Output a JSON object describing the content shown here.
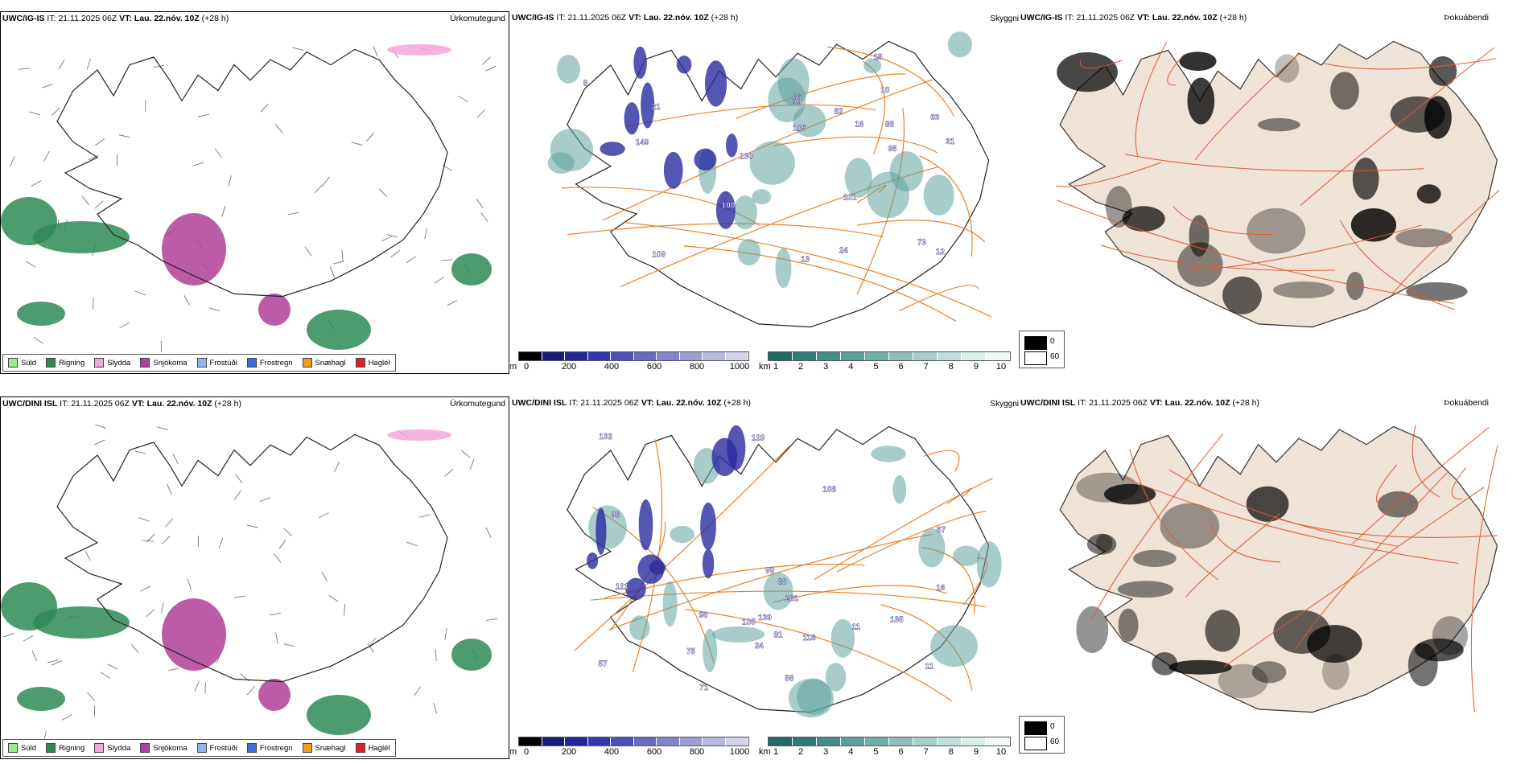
{
  "rows": [
    {
      "model": "UWC/IG-IS",
      "it_label": "IT:",
      "it_value": "21.11.2025 06Z",
      "vt_label": "VT:",
      "vt_value": "Lau. 22.nóv. 10Z",
      "lead": "(+28 h)",
      "precip_title": "Úrkomutegund",
      "cloud_title": "Skyggni",
      "fog_title": "Þokuábendi",
      "cloud_labels": [
        "95",
        "109",
        "12",
        "88",
        "82",
        "63",
        "86",
        "8",
        "105",
        "130",
        "13",
        "21",
        "16",
        "101",
        "149",
        "10",
        "24",
        "15",
        "31",
        "73",
        "100",
        "39"
      ]
    },
    {
      "model": "UWC/DINI ISL",
      "it_label": "IT:",
      "it_value": "21.11.2025 06Z",
      "vt_label": "VT:",
      "vt_value": "Lau. 22.nóv. 10Z",
      "lead": "(+28 h)",
      "precip_title": "Úrkomutegund",
      "cloud_title": "Skyggni",
      "fog_title": "Þokuábendi",
      "cloud_labels": [
        "88",
        "96",
        "75",
        "81",
        "57",
        "129",
        "11",
        "56",
        "57",
        "24",
        "139",
        "105",
        "98",
        "132",
        "11",
        "16",
        "108",
        "135",
        "71",
        "281",
        "99",
        "118",
        "121"
      ]
    }
  ],
  "precip_legend": [
    {
      "label": "Súld",
      "color": "#90ee90"
    },
    {
      "label": "Rigning",
      "color": "#2e8b57"
    },
    {
      "label": "Slydda",
      "color": "#f4a6d7"
    },
    {
      "label": "Snjókoma",
      "color": "#b0409a"
    },
    {
      "label": "Frostúði",
      "color": "#87b8f0"
    },
    {
      "label": "Frostregn",
      "color": "#3a6fd8"
    },
    {
      "label": "Snæhagl",
      "color": "#f0a020"
    },
    {
      "label": "Haglél",
      "color": "#e02020"
    }
  ],
  "ceiling_bar": {
    "unit": "m",
    "ticks": [
      "0",
      "200",
      "400",
      "600",
      "800",
      "1000"
    ],
    "colors": [
      "#000000",
      "#1a1a7a",
      "#26269a",
      "#3636b0",
      "#5050b8",
      "#6a6ac0",
      "#8484cc",
      "#9e9ed6",
      "#b8b8e0",
      "#d2d2ea"
    ]
  },
  "vis_bar": {
    "unit": "km",
    "ticks": [
      "1",
      "2",
      "3",
      "4",
      "5",
      "6",
      "7",
      "8",
      "9",
      "10"
    ],
    "colors": [
      "#1f6b64",
      "#2f7d76",
      "#438f88",
      "#5a9f98",
      "#72afa8",
      "#8cbfb9",
      "#a6cfca",
      "#c0dfdb",
      "#daefec",
      "#f2faf9"
    ]
  },
  "fog_legend": {
    "high": "0",
    "low": "60"
  },
  "colors": {
    "rain": "#2e8b57",
    "snow": "#b0409a",
    "sleet": "#f4a6d7",
    "ceiling": "#2a2aa0",
    "vis": "#5fa39c",
    "road": "#e8822a",
    "fog_land": "#efe2d6",
    "fog_road": "#e05a30"
  }
}
